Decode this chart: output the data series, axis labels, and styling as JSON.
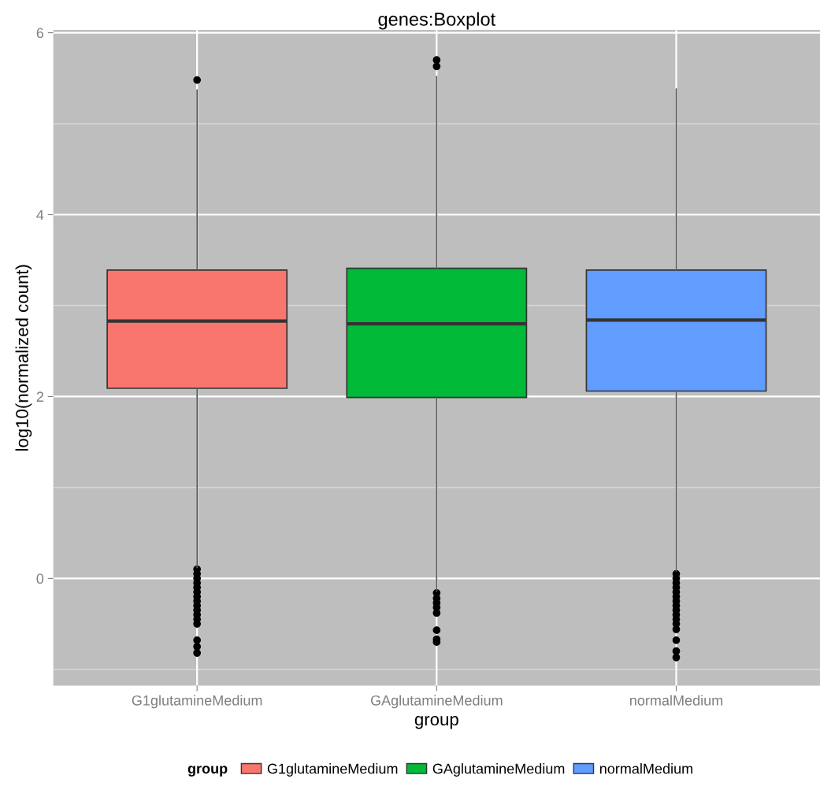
{
  "chart_data": {
    "type": "box",
    "title": "genes:Boxplot",
    "xlabel": "group",
    "ylabel": "log10(normalized count)",
    "legend_title": "group",
    "categories": [
      "G1glutamineMedium",
      "GAglutamineMedium",
      "normalMedium"
    ],
    "series": [
      {
        "name": "G1glutamineMedium",
        "color": "#f8766d",
        "boxes": [
          {
            "low": 0.12,
            "q1": 2.09,
            "median": 2.83,
            "q3": 3.39,
            "high": 5.37,
            "outliers": [
              5.48,
              0.1,
              0.05,
              0.0,
              -0.05,
              -0.1,
              -0.15,
              -0.2,
              -0.25,
              -0.3,
              -0.35,
              -0.4,
              -0.45,
              -0.5,
              -0.68,
              -0.75,
              -0.82
            ]
          },
          null,
          null
        ]
      },
      {
        "name": "GAglutamineMedium",
        "color": "#00ba38",
        "boxes": [
          null,
          {
            "low": -0.14,
            "q1": 1.99,
            "median": 2.8,
            "q3": 3.41,
            "high": 5.52,
            "outliers": [
              5.7,
              5.63,
              -0.16,
              -0.22,
              -0.27,
              -0.32,
              -0.38,
              -0.57,
              -0.67,
              -0.7
            ]
          },
          null
        ]
      },
      {
        "name": "normalMedium",
        "color": "#619cff",
        "boxes": [
          null,
          null,
          {
            "low": 0.08,
            "q1": 2.06,
            "median": 2.84,
            "q3": 3.39,
            "high": 5.38,
            "outliers": [
              0.05,
              0.0,
              -0.05,
              -0.1,
              -0.15,
              -0.2,
              -0.25,
              -0.3,
              -0.35,
              -0.4,
              -0.45,
              -0.5,
              -0.56,
              -0.68,
              -0.8,
              -0.87
            ]
          }
        ]
      }
    ],
    "ylim": [
      -1.18,
      6.03
    ],
    "yticks": [
      0,
      2,
      4,
      6
    ],
    "grid": true,
    "legend": "bottom"
  }
}
